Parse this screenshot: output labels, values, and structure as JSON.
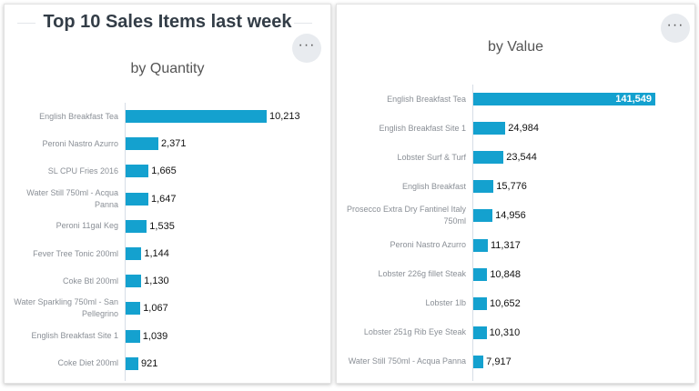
{
  "header": {
    "title": "Top 10 Sales Items last week",
    "more_icon": "ellipsis-icon"
  },
  "colors": {
    "bar": "#14a1cf"
  },
  "chart_data": [
    {
      "type": "bar",
      "orientation": "horizontal",
      "title": "by Quantity",
      "categories": [
        "English Breakfast Tea",
        "Peroni Nastro Azurro",
        "SL CPU Fries 2016",
        "Water Still 750ml - Acqua Panna",
        "Peroni 11gal Keg",
        "Fever Tree Tonic 200ml",
        "Coke Btl 200ml",
        "Water Sparkling 750ml - San Pellegrino",
        "English Breakfast Site 1",
        "Coke Diet 200ml"
      ],
      "values": [
        10213,
        2371,
        1665,
        1647,
        1535,
        1144,
        1130,
        1067,
        1039,
        921
      ],
      "labels": [
        "10,213",
        "2,371",
        "1,665",
        "1,647",
        "1,535",
        "1,144",
        "1,130",
        "1,067",
        "1,039",
        "921"
      ]
    },
    {
      "type": "bar",
      "orientation": "horizontal",
      "title": "by Value",
      "categories": [
        "English Breakfast Tea",
        "English Breakfast Site 1",
        "Lobster Surf & Turf",
        "English Breakfast",
        "Prosecco Extra Dry Fantinel Italy 750ml",
        "Peroni Nastro Azurro",
        "Lobster 226g fillet Steak",
        "Lobster 1lb",
        "Lobster 251g Rib Eye Steak",
        "Water Still 750ml - Acqua Panna"
      ],
      "values": [
        141549,
        24984,
        23544,
        15776,
        14956,
        11317,
        10848,
        10652,
        10310,
        7917
      ],
      "labels": [
        "141,549",
        "24,984",
        "23,544",
        "15,776",
        "14,956",
        "11,317",
        "10,848",
        "10,652",
        "10,310",
        "7,917"
      ]
    }
  ]
}
